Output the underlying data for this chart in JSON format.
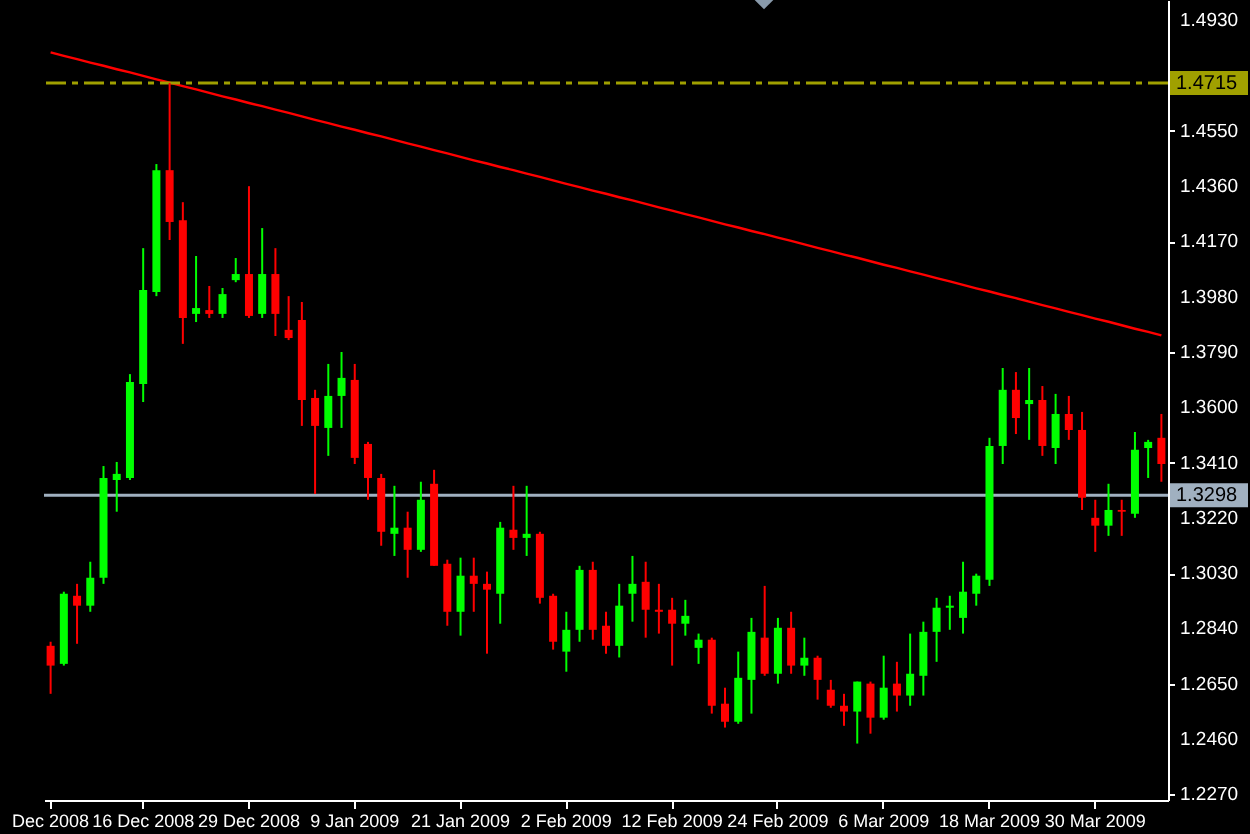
{
  "chart_data": {
    "type": "candlestick",
    "categories": [
      "Dec 2008",
      null,
      null,
      null,
      null,
      null,
      null,
      "16 Dec 2008",
      null,
      null,
      null,
      null,
      null,
      null,
      null,
      "29 Dec 2008",
      null,
      null,
      null,
      null,
      null,
      null,
      null,
      "9 Jan 2009",
      null,
      null,
      null,
      null,
      null,
      null,
      null,
      "21 Jan 2009",
      null,
      null,
      null,
      null,
      null,
      null,
      null,
      "2 Feb 2009",
      null,
      null,
      null,
      null,
      null,
      null,
      null,
      "12 Feb 2009",
      null,
      null,
      null,
      null,
      null,
      null,
      null,
      "24 Feb 2009",
      null,
      null,
      null,
      null,
      null,
      null,
      null,
      "6 Mar 2009",
      null,
      null,
      null,
      null,
      null,
      null,
      null,
      "18 Mar 2009",
      null,
      null,
      null,
      null,
      null,
      null,
      null,
      "30 Mar 2009",
      null,
      null,
      null,
      null,
      null
    ],
    "ohlc": [
      [
        1.278,
        1.2794,
        1.2615,
        1.2712
      ],
      [
        1.2718,
        1.2966,
        1.2712,
        1.2959
      ],
      [
        1.2952,
        1.2993,
        1.2787,
        1.2918
      ],
      [
        1.2918,
        1.3069,
        1.2897,
        1.3014
      ],
      [
        1.3014,
        1.3398,
        1.2993,
        1.3357
      ],
      [
        1.335,
        1.3412,
        1.3241,
        1.3371
      ],
      [
        1.3357,
        1.3714,
        1.335,
        1.3687
      ],
      [
        1.368,
        1.4147,
        1.3618,
        1.4003
      ],
      [
        1.3996,
        1.4436,
        1.3982,
        1.4415
      ],
      [
        1.4415,
        1.4715,
        1.4175,
        1.4237
      ],
      [
        1.4243,
        1.4305,
        1.3818,
        1.3907
      ],
      [
        1.3921,
        1.412,
        1.3893,
        1.3941
      ],
      [
        1.3934,
        1.4017,
        1.3907,
        1.3921
      ],
      [
        1.3921,
        1.401,
        1.3907,
        1.3989
      ],
      [
        1.4037,
        1.4113,
        1.403,
        1.4058
      ],
      [
        1.4058,
        1.436,
        1.3907,
        1.3914
      ],
      [
        1.3921,
        1.4216,
        1.3907,
        1.4058
      ],
      [
        1.4058,
        1.4147,
        1.3845,
        1.3921
      ],
      [
        1.3866,
        1.3982,
        1.3831,
        1.3838
      ],
      [
        1.39,
        1.3962,
        1.3536,
        1.3625
      ],
      [
        1.3632,
        1.366,
        1.3302,
        1.3536
      ],
      [
        1.3529,
        1.3749,
        1.3433,
        1.3639
      ],
      [
        1.3639,
        1.379,
        1.3529,
        1.3701
      ],
      [
        1.3694,
        1.3749,
        1.3405,
        1.3426
      ],
      [
        1.3474,
        1.3481,
        1.3282,
        1.3357
      ],
      [
        1.3357,
        1.3371,
        1.3124,
        1.3172
      ],
      [
        1.3165,
        1.333,
        1.3089,
        1.3186
      ],
      [
        1.3186,
        1.3241,
        1.3014,
        1.311
      ],
      [
        1.311,
        1.3344,
        1.3103,
        1.3282
      ],
      [
        1.3337,
        1.3385,
        1.3055,
        1.3055
      ],
      [
        1.3062,
        1.3076,
        1.2849,
        1.2897
      ],
      [
        1.2897,
        1.3083,
        1.2815,
        1.3021
      ],
      [
        1.3021,
        1.3083,
        1.2897,
        1.2993
      ],
      [
        1.2993,
        1.3035,
        1.2753,
        1.2973
      ],
      [
        1.2959,
        1.3206,
        1.2856,
        1.3186
      ],
      [
        1.3179,
        1.333,
        1.311,
        1.3151
      ],
      [
        1.3151,
        1.333,
        1.3089,
        1.3165
      ],
      [
        1.3165,
        1.3172,
        1.2925,
        1.2945
      ],
      [
        1.2952,
        1.2959,
        1.2767,
        1.2794
      ],
      [
        1.276,
        1.2897,
        1.2691,
        1.2835
      ],
      [
        1.2835,
        1.3055,
        1.2794,
        1.3041
      ],
      [
        1.3041,
        1.3069,
        1.2801,
        1.2835
      ],
      [
        1.2849,
        1.2897,
        1.2753,
        1.278
      ],
      [
        1.278,
        1.2993,
        1.274,
        1.2918
      ],
      [
        1.2959,
        1.3089,
        1.2863,
        1.2993
      ],
      [
        1.3,
        1.3069,
        1.2808,
        1.2904
      ],
      [
        1.2904,
        1.2993,
        1.2822,
        1.2897
      ],
      [
        1.2904,
        1.2945,
        1.2712,
        1.2856
      ],
      [
        1.2856,
        1.2938,
        1.2815,
        1.2883
      ],
      [
        1.2773,
        1.2822,
        1.2718,
        1.2801
      ],
      [
        1.2801,
        1.2808,
        1.2547,
        1.2574
      ],
      [
        1.2581,
        1.2636,
        1.2499,
        1.2519
      ],
      [
        1.2519,
        1.276,
        1.2512,
        1.267
      ],
      [
        1.2663,
        1.2876,
        1.2547,
        1.2828
      ],
      [
        1.2808,
        1.2986,
        1.2677,
        1.2684
      ],
      [
        1.2684,
        1.2876,
        1.265,
        1.2842
      ],
      [
        1.2842,
        1.2897,
        1.2684,
        1.2712
      ],
      [
        1.2712,
        1.2808,
        1.2677,
        1.2739
      ],
      [
        1.2739,
        1.2746,
        1.2595,
        1.2663
      ],
      [
        1.2629,
        1.2663,
        1.2567,
        1.2574
      ],
      [
        1.2574,
        1.2615,
        1.2505,
        1.2554
      ],
      [
        1.2554,
        1.2657,
        1.2444,
        1.2657
      ],
      [
        1.265,
        1.2657,
        1.2478,
        1.2533
      ],
      [
        1.2533,
        1.2746,
        1.2526,
        1.2636
      ],
      [
        1.265,
        1.2725,
        1.2554,
        1.2609
      ],
      [
        1.2609,
        1.2822,
        1.2574,
        1.2684
      ],
      [
        1.2677,
        1.2863,
        1.2609,
        1.2828
      ],
      [
        1.2828,
        1.2945,
        1.2725,
        1.2911
      ],
      [
        1.2911,
        1.2952,
        1.2835,
        1.2918
      ],
      [
        1.2876,
        1.3069,
        1.2822,
        1.2966
      ],
      [
        1.2959,
        1.3028,
        1.2918,
        1.3021
      ],
      [
        1.3007,
        1.3495,
        1.2986,
        1.3467
      ],
      [
        1.3467,
        1.3735,
        1.3405,
        1.366
      ],
      [
        1.366,
        1.3721,
        1.3508,
        1.3563
      ],
      [
        1.3611,
        1.3735,
        1.3488,
        1.3625
      ],
      [
        1.3625,
        1.3673,
        1.3433,
        1.3467
      ],
      [
        1.346,
        1.3646,
        1.3405,
        1.3577
      ],
      [
        1.3577,
        1.3639,
        1.3488,
        1.3522
      ],
      [
        1.3522,
        1.3584,
        1.3247,
        1.3289
      ],
      [
        1.322,
        1.3282,
        1.3103,
        1.3193
      ],
      [
        1.3193,
        1.3337,
        1.3158,
        1.3247
      ],
      [
        1.3247,
        1.3282,
        1.3158,
        1.3241
      ],
      [
        1.3234,
        1.3515,
        1.322,
        1.3454
      ],
      [
        1.346,
        1.3488,
        1.3357,
        1.3481
      ],
      [
        1.3495,
        1.3577,
        1.3344,
        1.3405
      ]
    ],
    "colors": [
      "#ff0000",
      "#00ff00",
      "#ff0000",
      "#00ff00",
      "#00ff00",
      "#00ff00",
      "#00ff00",
      "#00ff00",
      "#00ff00",
      "#ff0000",
      "#ff0000",
      "#00ff00",
      "#ff0000",
      "#00ff00",
      "#00ff00",
      "#ff0000",
      "#00ff00",
      "#ff0000",
      "#ff0000",
      "#ff0000",
      "#ff0000",
      "#00ff00",
      "#00ff00",
      "#ff0000",
      "#ff0000",
      "#ff0000",
      "#00ff00",
      "#ff0000",
      "#00ff00",
      "#ff0000",
      "#ff0000",
      "#00ff00",
      "#ff0000",
      "#ff0000",
      "#00ff00",
      "#ff0000",
      "#00ff00",
      "#ff0000",
      "#ff0000",
      "#00ff00",
      "#00ff00",
      "#ff0000",
      "#ff0000",
      "#00ff00",
      "#00ff00",
      "#ff0000",
      "#ff0000",
      "#ff0000",
      "#00ff00",
      "#00ff00",
      "#ff0000",
      "#ff0000",
      "#00ff00",
      "#00ff00",
      "#ff0000",
      "#00ff00",
      "#ff0000",
      "#00ff00",
      "#ff0000",
      "#ff0000",
      "#ff0000",
      "#00ff00",
      "#ff0000",
      "#00ff00",
      "#ff0000",
      "#00ff00",
      "#00ff00",
      "#00ff00",
      "#00ff00",
      "#00ff00",
      "#00ff00",
      "#00ff00",
      "#00ff00",
      "#ff0000",
      "#00ff00",
      "#ff0000",
      "#00ff00",
      "#ff0000",
      "#ff0000",
      "#ff0000",
      "#00ff00",
      "#ff0000",
      "#00ff00",
      "#00ff00",
      "#ff0000"
    ],
    "series": [
      {
        "type": "line",
        "color": "#ff0000",
        "values": [
          1.482,
          1.4808,
          1.4797,
          1.4785,
          1.4774,
          1.4762,
          1.4751,
          1.4739,
          1.4727,
          1.4716,
          1.4704,
          1.4693,
          1.4681,
          1.4669,
          1.4658,
          1.4646,
          1.4635,
          1.4623,
          1.4612,
          1.46,
          1.4588,
          1.4577,
          1.4565,
          1.4554,
          1.4542,
          1.4531,
          1.4519,
          1.4507,
          1.4496,
          1.4484,
          1.4473,
          1.4461,
          1.4449,
          1.4438,
          1.4426,
          1.4415,
          1.4403,
          1.4392,
          1.438,
          1.4368,
          1.4357,
          1.4345,
          1.4334,
          1.4322,
          1.4311,
          1.4299,
          1.4287,
          1.4276,
          1.4264,
          1.4253,
          1.4241,
          1.4229,
          1.4218,
          1.4206,
          1.4195,
          1.4183,
          1.4172,
          1.416,
          1.4148,
          1.4137,
          1.4125,
          1.4114,
          1.4102,
          1.409,
          1.4079,
          1.4067,
          1.4056,
          1.4044,
          1.4033,
          1.4021,
          1.4009,
          1.3998,
          1.3986,
          1.3975,
          1.3963,
          1.3951,
          1.394,
          1.3928,
          1.3917,
          1.3905,
          1.3894,
          1.3882,
          1.387,
          1.3859,
          1.3847
        ]
      }
    ],
    "ylim": [
      1.225,
      1.5
    ],
    "yticks": [
      {
        "value": 1.493,
        "label": "1.4930"
      },
      {
        "value": 1.455,
        "label": "1.4550"
      },
      {
        "value": 1.436,
        "label": "1.4360"
      },
      {
        "value": 1.417,
        "label": "1.4170"
      },
      {
        "value": 1.398,
        "label": "1.3980"
      },
      {
        "value": 1.379,
        "label": "1.3790"
      },
      {
        "value": 1.36,
        "label": "1.3600"
      },
      {
        "value": 1.341,
        "label": "1.3410"
      },
      {
        "value": 1.322,
        "label": "1.3220"
      },
      {
        "value": 1.303,
        "label": "1.3030"
      },
      {
        "value": 1.284,
        "label": "1.2840"
      },
      {
        "value": 1.265,
        "label": "1.2650"
      },
      {
        "value": 1.246,
        "label": "1.2460"
      },
      {
        "value": 1.227,
        "label": "1.2270"
      }
    ],
    "ref_lines": [
      {
        "axis": "y",
        "value": 1.4715,
        "label": "1.4715",
        "color": "#a0a000",
        "line_style": "dashed"
      },
      {
        "axis": "y",
        "value": 1.3298,
        "label": "1.3298",
        "color": "#a0b0c0",
        "line_style": "solid"
      }
    ]
  }
}
